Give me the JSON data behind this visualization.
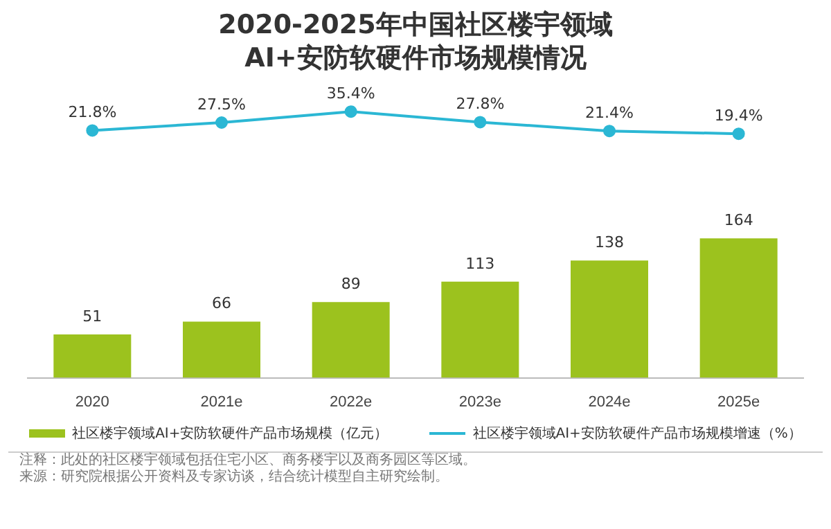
{
  "chart_data": [
    {
      "type": "line",
      "title": "2020-2025年中国社区楼宇领域\nAI+安防软硬件市场规模情况",
      "categories": [
        null,
        null,
        null,
        null,
        null,
        null
      ],
      "series": [
        {
          "name": "社区楼宇领域AI+安防软硬件产品市场规模增速（%）",
          "color": "#2bb7d4",
          "values": [
            21.8,
            27.5,
            35.4,
            27.8,
            21.4,
            19.4
          ],
          "value_labels": [
            "21.8%",
            "27.5%",
            "35.4%",
            "27.8%",
            "21.4%",
            "19.4%"
          ]
        }
      ],
      "grid": false,
      "legend": "bottom",
      "marker": "circle",
      "tick_labels": false
    },
    {
      "type": "bar",
      "categories": [
        "2020",
        "2021e",
        "2022e",
        "2023e",
        "2024e",
        "2025e"
      ],
      "series": [
        {
          "name": "社区楼宇领域AI+安防软硬件产品市场规模（亿元）",
          "color": "#9cc21e",
          "values": [
            51,
            66,
            89,
            113,
            138,
            164
          ]
        }
      ],
      "data_labels": true,
      "grid": false,
      "legend": "bottom",
      "tick_labels": "x",
      "annotations": [
        "注释：此处的社区楼宇领域包括住宅小区、商务楼宇以及商务园区等区域。",
        "来源：研究院根据公开资料及专家访谈，结合统计模型自主研究绘制。"
      ]
    }
  ]
}
